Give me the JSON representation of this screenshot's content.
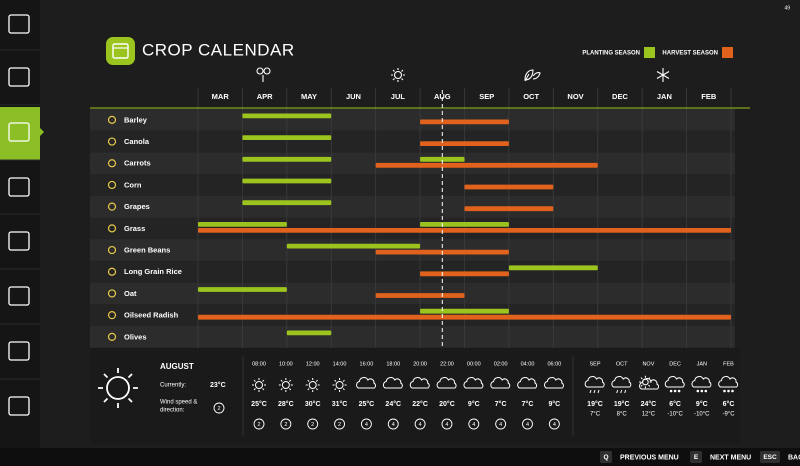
{
  "hud": {
    "fps": "49"
  },
  "header": {
    "title": "CROP CALENDAR"
  },
  "legend": {
    "planting": "PLANTING SEASON",
    "harvest": "HARVEST SEASON",
    "planting_color": "#9cc41f",
    "harvest_color": "#e0621c"
  },
  "calendar": {
    "months": [
      "MAR",
      "APR",
      "MAY",
      "JUN",
      "JUL",
      "AUG",
      "SEP",
      "OCT",
      "NOV",
      "DEC",
      "JAN",
      "FEB"
    ],
    "current_position": 5.5,
    "crops": [
      {
        "name": "Barley",
        "planting": [
          [
            1,
            3
          ]
        ],
        "harvest": [
          [
            5,
            7
          ]
        ]
      },
      {
        "name": "Canola",
        "planting": [
          [
            1,
            3
          ]
        ],
        "harvest": [
          [
            5,
            7
          ]
        ]
      },
      {
        "name": "Carrots",
        "planting": [
          [
            1,
            3
          ],
          [
            5,
            6
          ]
        ],
        "harvest": [
          [
            4,
            9
          ]
        ]
      },
      {
        "name": "Corn",
        "planting": [
          [
            1,
            3
          ]
        ],
        "harvest": [
          [
            6,
            8
          ]
        ]
      },
      {
        "name": "Grapes",
        "planting": [
          [
            1,
            3
          ]
        ],
        "harvest": [
          [
            6,
            8
          ]
        ]
      },
      {
        "name": "Grass",
        "planting": [
          [
            0,
            2
          ],
          [
            5,
            7
          ]
        ],
        "harvest": [
          [
            0,
            12
          ]
        ]
      },
      {
        "name": "Green Beans",
        "planting": [
          [
            2,
            5
          ]
        ],
        "harvest": [
          [
            4,
            7
          ]
        ]
      },
      {
        "name": "Long Grain Rice",
        "planting": [
          [
            7,
            9
          ]
        ],
        "harvest": [
          [
            5,
            7
          ]
        ]
      },
      {
        "name": "Oat",
        "planting": [
          [
            0,
            2
          ]
        ],
        "harvest": [
          [
            4,
            6
          ]
        ]
      },
      {
        "name": "Oilseed Radish",
        "planting": [
          [
            5,
            7
          ]
        ],
        "harvest": [
          [
            0,
            12
          ]
        ]
      },
      {
        "name": "Olives",
        "planting": [
          [
            2,
            3
          ]
        ],
        "harvest": []
      }
    ]
  },
  "weather": {
    "month": "AUGUST",
    "current_label": "Currently:",
    "current_temp": "23°C",
    "wind_label": [
      "Wind speed &",
      "direction:"
    ],
    "current_wind": "2",
    "hourly": [
      {
        "time": "08:00",
        "icon": "sun",
        "temp": "25°C",
        "wind": "2"
      },
      {
        "time": "10:00",
        "icon": "sun",
        "temp": "28°C",
        "wind": "2"
      },
      {
        "time": "12:00",
        "icon": "sun",
        "temp": "30°C",
        "wind": "2"
      },
      {
        "time": "14:00",
        "icon": "sun",
        "temp": "31°C",
        "wind": "2"
      },
      {
        "time": "16:00",
        "icon": "cloud",
        "temp": "25°C",
        "wind": "4"
      },
      {
        "time": "18:00",
        "icon": "cloud",
        "temp": "24°C",
        "wind": "4"
      },
      {
        "time": "20:00",
        "icon": "cloud",
        "temp": "22°C",
        "wind": "4"
      },
      {
        "time": "22:00",
        "icon": "cloud",
        "temp": "20°C",
        "wind": "4"
      },
      {
        "time": "00:00",
        "icon": "cloud",
        "temp": "9°C",
        "wind": "4"
      },
      {
        "time": "02:00",
        "icon": "cloud",
        "temp": "7°C",
        "wind": "4"
      },
      {
        "time": "04:00",
        "icon": "cloud",
        "temp": "7°C",
        "wind": "4"
      },
      {
        "time": "06:00",
        "icon": "cloud",
        "temp": "9°C",
        "wind": "4"
      }
    ],
    "monthly": [
      {
        "month": "SEP",
        "icon": "rain",
        "high": "19°C",
        "low": "7°C"
      },
      {
        "month": "OCT",
        "icon": "rain",
        "high": "19°C",
        "low": "8°C"
      },
      {
        "month": "NOV",
        "icon": "partly",
        "high": "24°C",
        "low": "12°C"
      },
      {
        "month": "DEC",
        "icon": "snow",
        "high": "6°C",
        "low": "-10°C"
      },
      {
        "month": "JAN",
        "icon": "snow",
        "high": "9°C",
        "low": "-10°C"
      },
      {
        "month": "FEB",
        "icon": "snow",
        "high": "6°C",
        "low": "-9°C"
      }
    ]
  },
  "footer": {
    "keys": [
      {
        "key": "Q",
        "label": "PREVIOUS MENU"
      },
      {
        "key": "E",
        "label": "NEXT MENU"
      },
      {
        "key": "ESC",
        "label": "BAC"
      }
    ]
  }
}
